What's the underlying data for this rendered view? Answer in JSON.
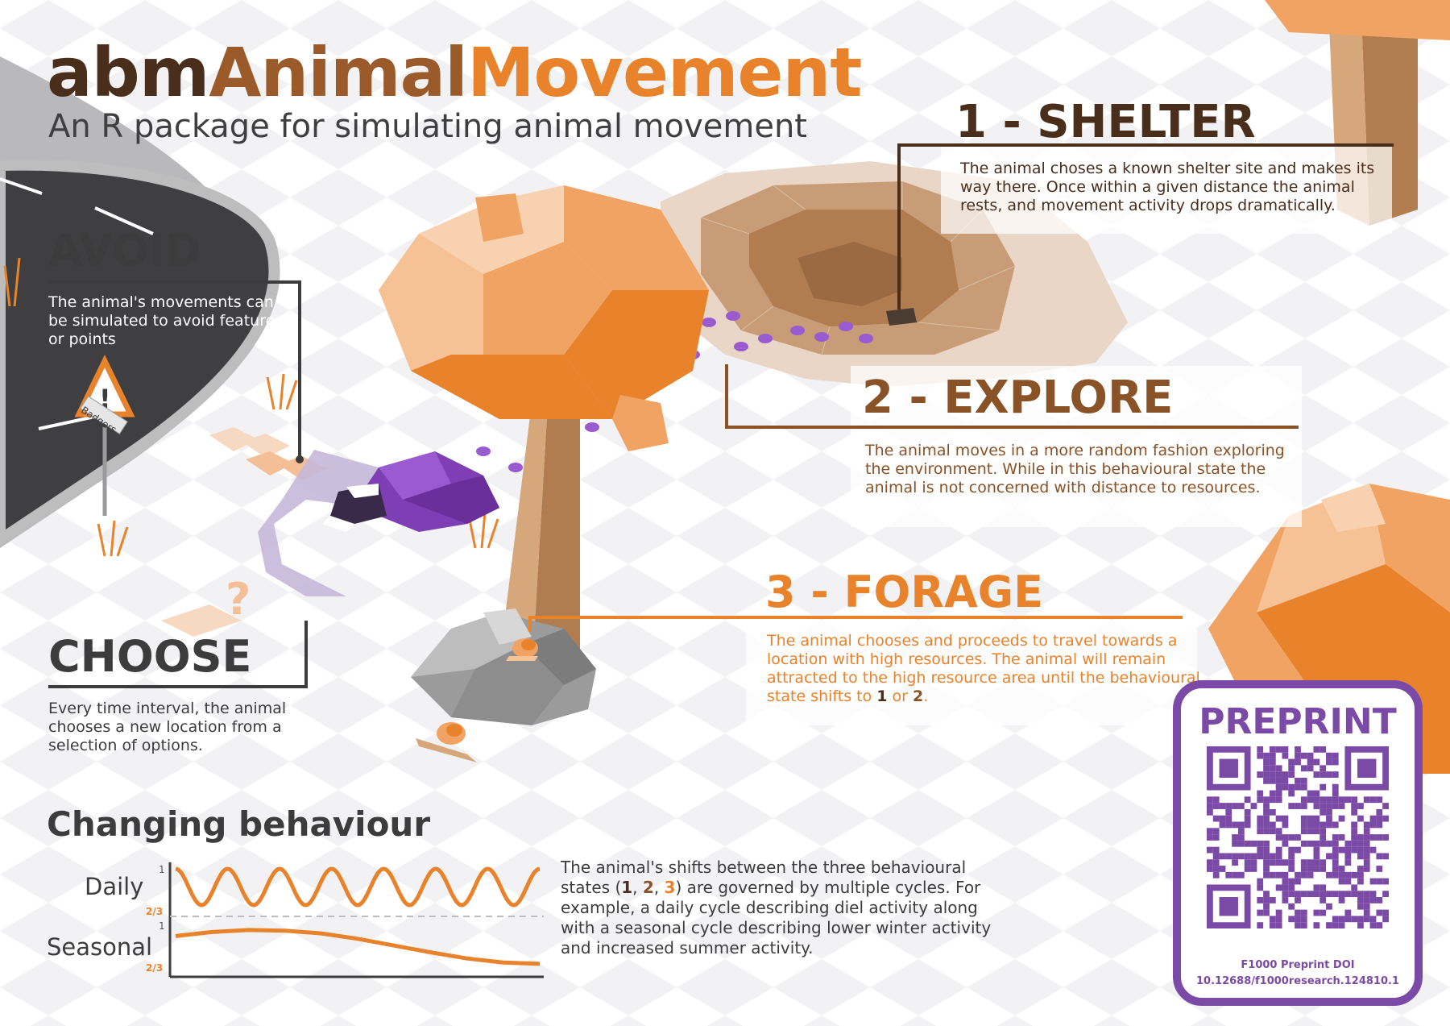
{
  "title": {
    "part1": "abm",
    "part2": "Animal",
    "part3": "Movement"
  },
  "subtitle": "An R package for simulating animal movement",
  "sections": {
    "shelter": {
      "heading": "1 - SHELTER",
      "text": "The animal choses a known shelter site and makes its way there. Once within a given distance the animal rests, and movement activity drops dramatically."
    },
    "explore": {
      "heading": "2 - EXPLORE",
      "text": "The animal moves in a more random fashion exploring the environment. While in this behavioural state the animal is not concerned with distance to resources."
    },
    "forage": {
      "heading": "3 - FORAGE",
      "text_before": "The animal chooses and proceeds to travel towards a location with high resources. The animal will remain attracted to the high resource area until the behavioural state shifts to ",
      "state1": "1",
      "or": " or ",
      "state2": "2",
      "end": "."
    },
    "avoid": {
      "heading": "AVOID",
      "text": "The animal's movements can be simulated to avoid features or points"
    },
    "choose": {
      "heading": "CHOOSE",
      "text": "Every time interval, the animal chooses a new location from a selection of options."
    }
  },
  "sign": {
    "label": "Badgers"
  },
  "changing": {
    "heading": "Changing behaviour",
    "daily_label": "Daily",
    "seasonal_label": "Seasonal",
    "tick_top": "1",
    "tick_bottom": "2/3",
    "text_part1": "The animal's shifts between the three behavioural states (",
    "s1": "1",
    "sep1": ", ",
    "s2": "2",
    "sep2": ", ",
    "s3": "3",
    "text_part2": ") are governed by multiple cycles. For example, a daily cycle describing diel activity along with a seasonal cycle describing lower winter activity and increased summer activity."
  },
  "chart_data": [
    {
      "type": "line",
      "name": "daily",
      "title": "",
      "ylabel": "Daily",
      "ylim": [
        0.6667,
        1
      ],
      "y_tick_labels": [
        "2/3",
        "1"
      ],
      "x": [
        0.0,
        0.5,
        1.0,
        1.5,
        2.0,
        2.5,
        3.0,
        3.5,
        4.0,
        4.5,
        5.0,
        5.5,
        6.0,
        6.5,
        7.0
      ],
      "values": [
        1,
        0.7,
        1,
        0.7,
        1,
        0.7,
        1,
        0.7,
        1,
        0.7,
        1,
        0.7,
        1,
        0.7,
        1
      ],
      "color": "#e8832c"
    },
    {
      "type": "line",
      "name": "seasonal",
      "title": "",
      "ylabel": "Seasonal",
      "ylim": [
        0.6667,
        1
      ],
      "y_tick_labels": [
        "2/3",
        "1"
      ],
      "x": [
        0,
        0.1,
        0.2,
        0.3,
        0.4,
        0.5,
        0.6,
        0.7,
        0.8,
        0.9,
        1.0
      ],
      "values": [
        0.92,
        0.95,
        0.965,
        0.96,
        0.94,
        0.9,
        0.85,
        0.8,
        0.755,
        0.725,
        0.715
      ],
      "color": "#e8832c"
    }
  ],
  "preprint": {
    "title": "PREPRINT",
    "doi_label": "F1000 Preprint DOI",
    "doi": "10.12688/f1000research.124810.1"
  },
  "colors": {
    "dark_brown": "#4a2e1c",
    "mid_brown": "#8a5227",
    "orange": "#e8832c",
    "purple": "#7b4aa6",
    "grey_text": "#3c3c3c"
  }
}
